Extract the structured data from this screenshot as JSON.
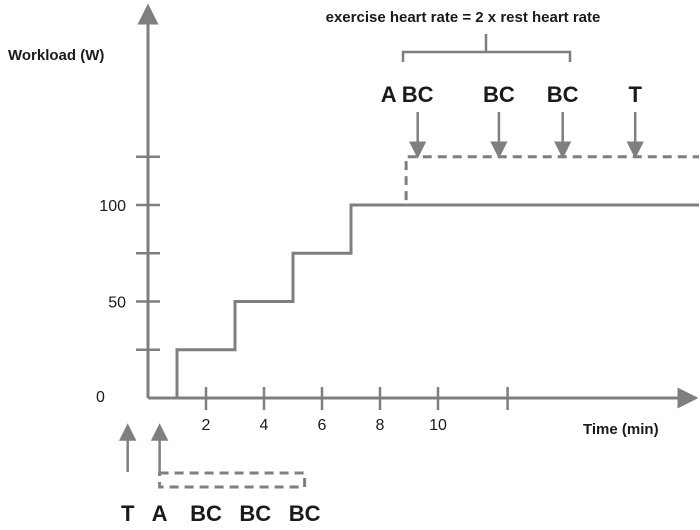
{
  "axes": {
    "y_label": "Workload (W)",
    "x_label": "Time (min)",
    "origin_label": "0",
    "y_ticks": [
      {
        "value": 25,
        "label": ""
      },
      {
        "value": 50,
        "label": "50"
      },
      {
        "value": 75,
        "label": ""
      },
      {
        "value": 100,
        "label": "100"
      },
      {
        "value": 125,
        "label": ""
      }
    ],
    "x_ticks": [
      {
        "value": 2,
        "label": "2"
      },
      {
        "value": 4,
        "label": "4"
      },
      {
        "value": 6,
        "label": "6"
      },
      {
        "value": 8,
        "label": "8"
      },
      {
        "value": 10,
        "label": "10"
      },
      {
        "value": 12.4,
        "label": ""
      }
    ]
  },
  "protocol": {
    "solid_steps": [
      [
        1,
        0
      ],
      [
        1,
        25
      ],
      [
        3,
        25
      ],
      [
        3,
        50
      ],
      [
        5,
        50
      ],
      [
        5,
        75
      ],
      [
        7,
        75
      ],
      [
        7,
        100
      ],
      [
        19,
        100
      ]
    ],
    "dashed_steps": [
      [
        7,
        100
      ],
      [
        8.9,
        100
      ],
      [
        8.9,
        125
      ],
      [
        19,
        125
      ]
    ]
  },
  "brace_label": "exercise heart rate = 2 x rest heart rate",
  "upper_markers": [
    {
      "label": "A",
      "x": 8.3,
      "arrow": false
    },
    {
      "label": "BC",
      "x": 9.3,
      "arrow": true
    },
    {
      "label": "BC",
      "x": 12.1,
      "arrow": true
    },
    {
      "label": "BC",
      "x": 14.3,
      "arrow": true
    },
    {
      "label": "T",
      "x": 16.8,
      "arrow": true
    }
  ],
  "lower_markers": [
    {
      "label": "T",
      "x": -0.7,
      "arrow": true
    },
    {
      "label": "A",
      "x": 0.4,
      "arrow": true
    },
    {
      "label": "BC",
      "x": 2,
      "arrow": false
    },
    {
      "label": "BC",
      "x": 3.7,
      "arrow": false
    },
    {
      "label": "BC",
      "x": 5.4,
      "arrow": false
    }
  ],
  "rest_period": {
    "start": 0.4,
    "end": 5.4
  },
  "colors": {
    "line": "#7f7f7f",
    "text": "#1a1a1a"
  }
}
